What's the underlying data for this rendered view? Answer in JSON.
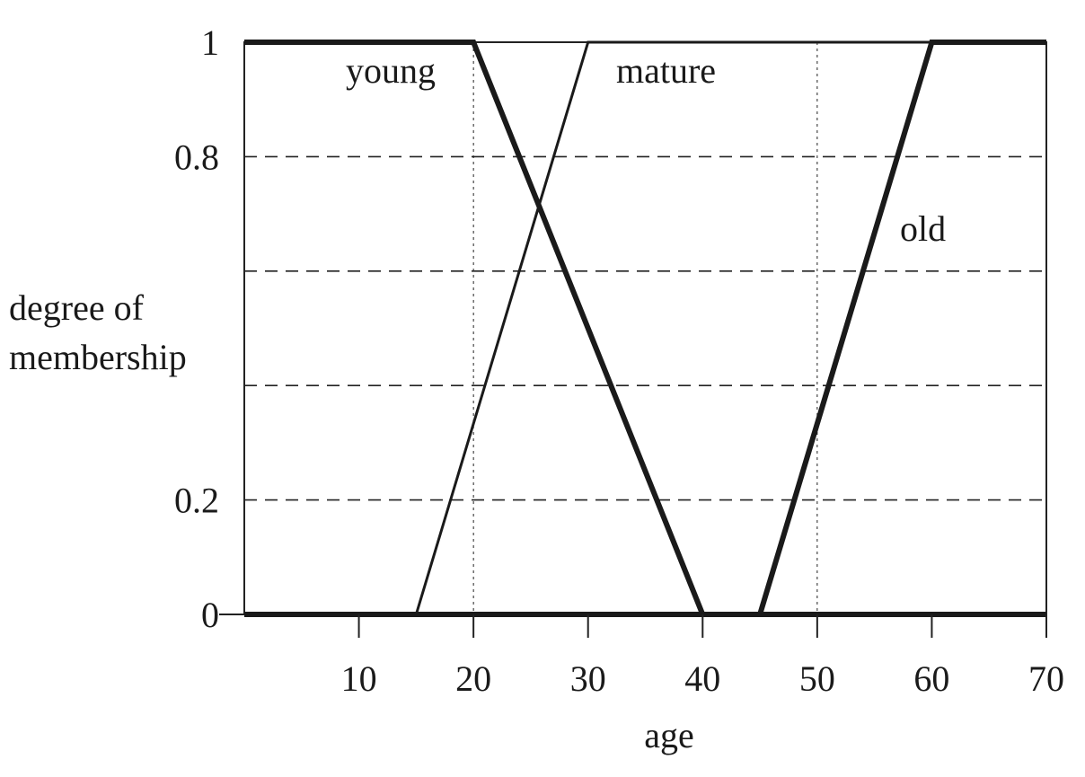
{
  "chart_data": {
    "type": "line",
    "xlabel": "age",
    "ylabel_lines": [
      "degree of",
      "membership"
    ],
    "xlim": [
      0,
      70
    ],
    "ylim": [
      0,
      1
    ],
    "x_ticks": [
      10,
      20,
      30,
      40,
      50,
      60,
      70
    ],
    "x_tick_labels": [
      "10",
      "20",
      "30",
      "40",
      "50",
      "60",
      "70"
    ],
    "y_ticks": [
      0,
      0.2,
      0.4,
      0.6,
      0.8,
      1
    ],
    "y_tick_labels": [
      "0",
      "0.2",
      "",
      "",
      "0.8",
      "1"
    ],
    "dashed_gridlines_y": [
      0.2,
      0.4,
      0.6,
      0.8,
      1
    ],
    "dotted_gridlines_x": [
      20,
      50
    ],
    "series": [
      {
        "name": "young",
        "line_weight": "thick",
        "points": [
          [
            0,
            1
          ],
          [
            20,
            1
          ],
          [
            40,
            0
          ],
          [
            70,
            0
          ]
        ]
      },
      {
        "name": "mature",
        "line_weight": "thin",
        "points": [
          [
            15,
            0
          ],
          [
            30,
            1
          ],
          [
            70,
            1
          ]
        ]
      },
      {
        "name": "old",
        "line_weight": "thick",
        "points": [
          [
            0,
            0
          ],
          [
            45,
            0
          ],
          [
            60,
            1
          ],
          [
            70,
            1
          ]
        ]
      }
    ]
  }
}
